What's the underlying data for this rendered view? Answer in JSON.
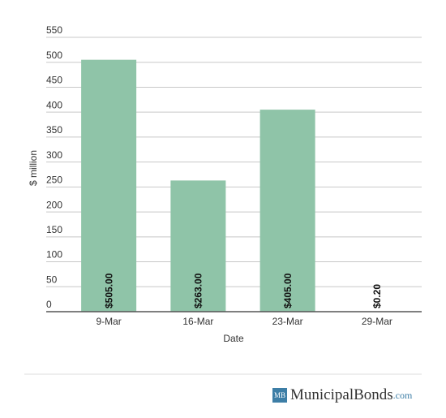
{
  "chart_data": {
    "type": "bar",
    "x_label": "Date",
    "y_label": "$ million",
    "categories": [
      "9-Mar",
      "16-Mar",
      "23-Mar",
      "29-Mar"
    ],
    "values": [
      505,
      263,
      405,
      0.2
    ],
    "value_labels": [
      "$505.00",
      "$263.00",
      "$405.00",
      "$0.20"
    ],
    "color": "#8fc4a8",
    "ylim": [
      0,
      550
    ],
    "yticks": [
      0,
      50,
      100,
      150,
      200,
      250,
      300,
      350,
      400,
      450,
      500,
      550
    ],
    "grid": true
  },
  "footer": {
    "logo_icon": "MB",
    "brand": "MunicipalBonds",
    "domain": ".com"
  }
}
